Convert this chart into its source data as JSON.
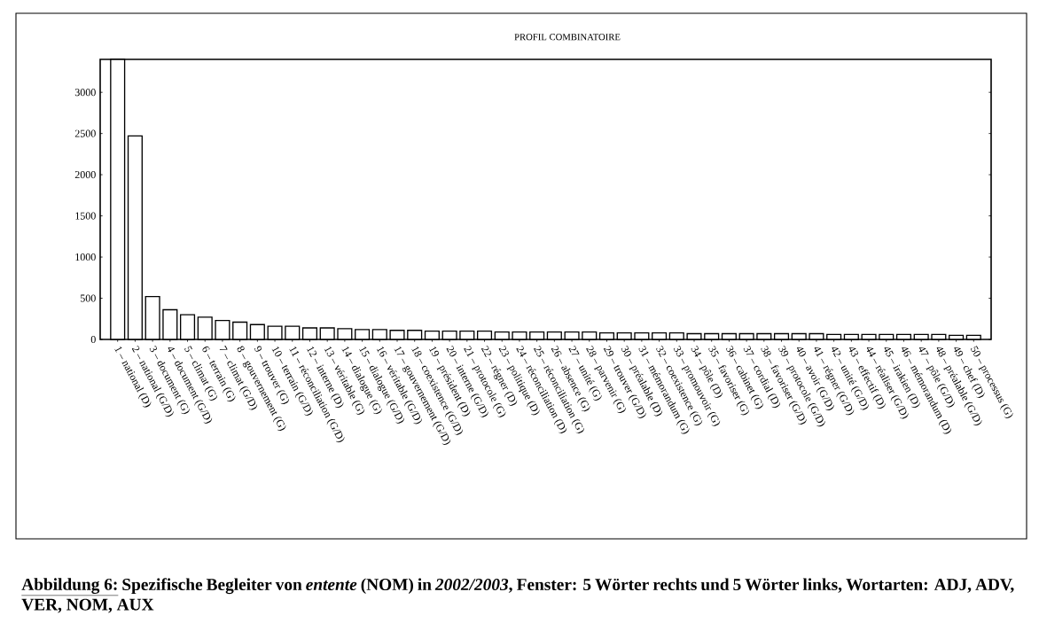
{
  "chart_data": {
    "type": "bar",
    "title": "PROFIL COMBINATOIRE",
    "categories": [
      "1 – national (D)",
      "2 – national (G/D)",
      "3 – document (G)",
      "4 – document (G/D)",
      "5 – climat (G)",
      "6 – terrain (G)",
      "7 – climat (G/D)",
      "8 – gouvernement (G)",
      "9 – trouver (G)",
      "10 – terrain (G/D)",
      "11 – réconciliation (G/D)",
      "12 – interne (D)",
      "13 – véritable (G)",
      "14 – dialogue (G)",
      "15 – dialogue (G/D)",
      "16 – véritable (G/D)",
      "17 – gouvernement (G/D)",
      "18 – coexistence (G/D)",
      "19 – président (D)",
      "20 – interne (G/D)",
      "21 – protocole (G)",
      "22 – régner (D)",
      "23 – politique (D)",
      "24 – réconciliation (D)",
      "25 – réconciliation (G)",
      "26 – absence (G)",
      "27 – unité (G)",
      "28 – parvenir (G)",
      "29 – trouver (G/D)",
      "30 – préalable (D)",
      "31 – mémorandum (G)",
      "32 – coexistence (G)",
      "33 – promouvoir (G)",
      "34 – pôle (D)",
      "35 – favoriser (G)",
      "36 – cabinet (G)",
      "37 – cordial (D)",
      "38 – favoriser (G/D)",
      "39 – protocole (G/D)",
      "40 – avoir (G/D)",
      "41 – régner (G/D)",
      "42 – unité (G/D)",
      "43 – effectif (D)",
      "44 – réaliser (G/D)",
      "45 – irakien (D)",
      "46 – mémorandum (D)",
      "47 – pôle (G/D)",
      "48 – préalable (G/D)",
      "49 – chef (D)",
      "50 – processus (G)"
    ],
    "values": [
      3400,
      2470,
      520,
      360,
      300,
      270,
      230,
      210,
      180,
      160,
      160,
      140,
      140,
      130,
      120,
      120,
      110,
      110,
      100,
      100,
      100,
      100,
      90,
      90,
      90,
      90,
      90,
      90,
      80,
      80,
      80,
      80,
      80,
      70,
      70,
      70,
      70,
      70,
      70,
      70,
      70,
      60,
      60,
      60,
      60,
      60,
      60,
      60,
      50,
      50
    ],
    "color": "#ffffff",
    "ylim": [
      0,
      3400
    ],
    "yticks": [
      0,
      500,
      1000,
      1500,
      2000,
      2500,
      3000
    ],
    "annotations": [
      "Abbildung 6:",
      "Spezifische Begleiter von *entente* (NOM) in *2002/2003*, Fenster: 5 Wörter rechts und 5 Wörter links, Wortarten: ADJ, ADV, VER, NOM, AUX"
    ]
  }
}
